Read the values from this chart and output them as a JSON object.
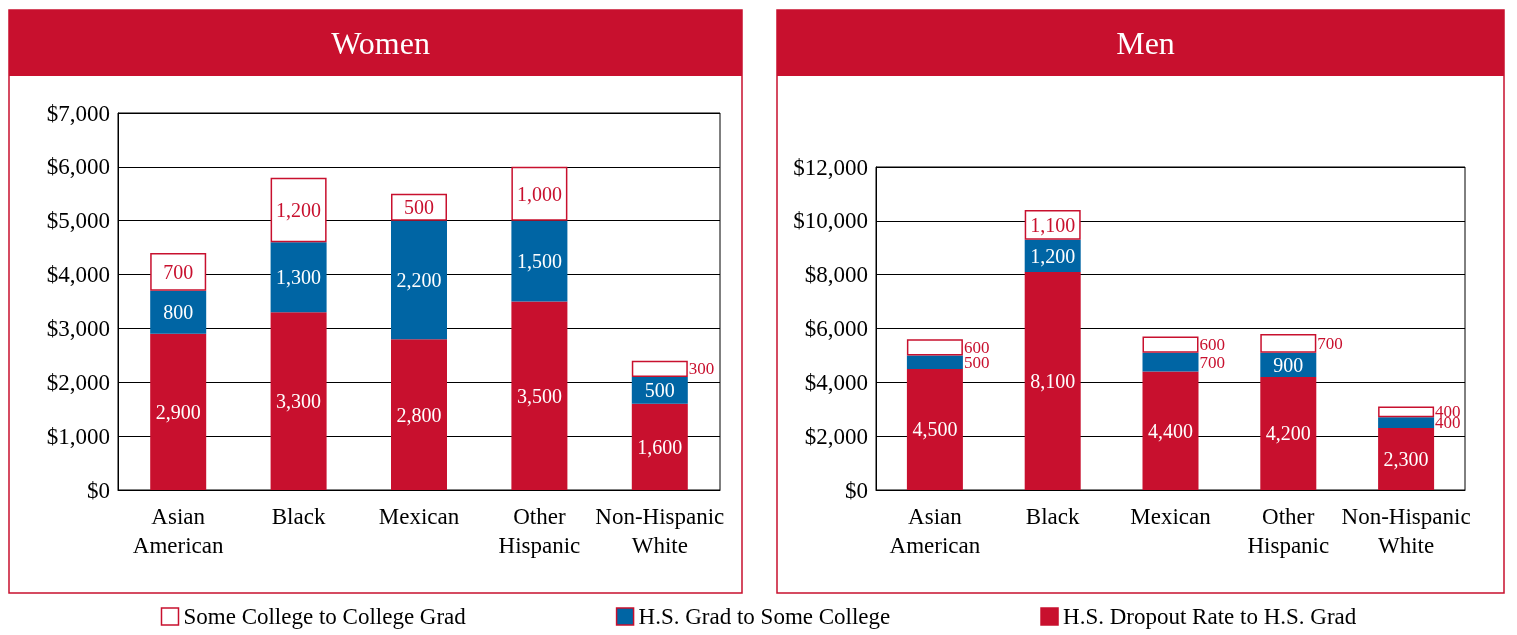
{
  "chart_data": [
    {
      "type": "bar",
      "title": "Women",
      "stacked": true,
      "grid": "y",
      "legend": "bottom",
      "categories": [
        "Asian\nAmerican",
        "Black",
        "Mexican",
        "Other\nHispanic",
        "Non-Hispanic\nWhite"
      ],
      "ylim": [
        0,
        7000
      ],
      "yticks": [
        {
          "value": 0,
          "label": "$0"
        },
        {
          "value": 1000,
          "label": "$1,000"
        },
        {
          "value": 2000,
          "label": "$2,000"
        },
        {
          "value": 3000,
          "label": "$3,000"
        },
        {
          "value": 4000,
          "label": "$4,000"
        },
        {
          "value": 5000,
          "label": "$5,000"
        },
        {
          "value": 6000,
          "label": "$6,000"
        },
        {
          "value": 7000,
          "label": "$7,000"
        }
      ],
      "series": [
        {
          "name": "H.S. Dropout Rate to H.S. Grad",
          "color": "#c8102e",
          "values": [
            2900,
            3300,
            2800,
            3500,
            1600
          ],
          "value_labels": [
            "2,900",
            "3,300",
            "2,800",
            "3,500",
            "1,600"
          ]
        },
        {
          "name": "H.S. Grad to Some College",
          "color": "#0065a4",
          "values": [
            800,
            1300,
            2200,
            1500,
            500
          ],
          "value_labels": [
            "800",
            "1,300",
            "2,200",
            "1,500",
            "500"
          ]
        },
        {
          "name": "Some College to College Grad",
          "color": "#ffffff",
          "values": [
            700,
            1200,
            500,
            1000,
            300
          ],
          "value_labels": [
            "700",
            "1,200",
            "500",
            "1,000",
            "300"
          ]
        }
      ]
    },
    {
      "type": "bar",
      "title": "Men",
      "stacked": true,
      "grid": "y",
      "legend": "bottom",
      "categories": [
        "Asian\nAmerican",
        "Black",
        "Mexican",
        "Other\nHispanic",
        "Non-Hispanic\nWhite"
      ],
      "ylim": [
        0,
        12000
      ],
      "yticks": [
        {
          "value": 0,
          "label": "$0"
        },
        {
          "value": 2000,
          "label": "$2,000"
        },
        {
          "value": 4000,
          "label": "$4,000"
        },
        {
          "value": 6000,
          "label": "$6,000"
        },
        {
          "value": 8000,
          "label": "$8,000"
        },
        {
          "value": 10000,
          "label": "$10,000"
        },
        {
          "value": 12000,
          "label": "$12,000"
        }
      ],
      "series": [
        {
          "name": "H.S. Dropout Rate to H.S. Grad",
          "color": "#c8102e",
          "values": [
            4500,
            8100,
            4400,
            4200,
            2300
          ],
          "value_labels": [
            "4,500",
            "8,100",
            "4,400",
            "4,200",
            "2,300"
          ]
        },
        {
          "name": "H.S. Grad to Some College",
          "color": "#0065a4",
          "values": [
            500,
            1200,
            700,
            900,
            400
          ],
          "value_labels": [
            "500",
            "1,200",
            "700",
            "900",
            "400"
          ]
        },
        {
          "name": "Some College to College Grad",
          "color": "#ffffff",
          "values": [
            600,
            1100,
            600,
            700,
            400
          ],
          "value_labels": [
            "600",
            "1,100",
            "600",
            "700",
            "400"
          ]
        }
      ]
    }
  ]
}
